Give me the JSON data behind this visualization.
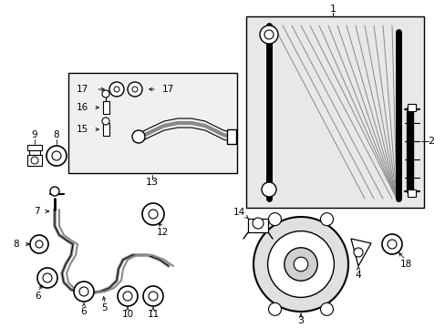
{
  "bg": "#ffffff",
  "black": "#000000",
  "gray": "#888888",
  "lgray": "#cccccc",
  "condenser_bg": "#e8e8e8",
  "box13_bg": "#f0f0f0"
}
